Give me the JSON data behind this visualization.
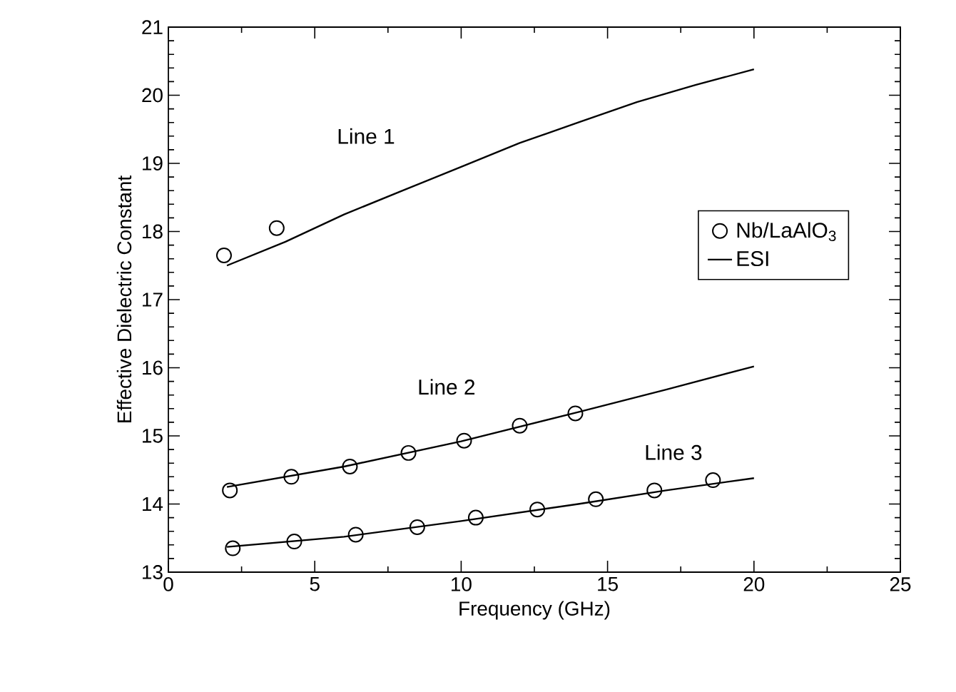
{
  "chart_data": {
    "type": "line",
    "xlabel": "Frequency (GHz)",
    "ylabel": "Effective  Dielectric  Constant",
    "xlim": [
      0,
      25
    ],
    "ylim": [
      13,
      21
    ],
    "xticks": [
      0,
      5,
      10,
      15,
      20,
      25
    ],
    "yticks": [
      13,
      14,
      15,
      16,
      17,
      18,
      19,
      20,
      21
    ],
    "grid": false,
    "legend": "right",
    "series": [
      {
        "name": "Nb/LaAlO$_{3}$",
        "type": "scatter",
        "marker": "circle",
        "color": "#000000",
        "x": [
          1.9,
          3.7,
          2.1,
          4.2,
          6.2,
          8.2,
          10.1,
          12.0,
          13.9,
          2.2,
          4.3,
          6.4,
          8.5,
          10.5,
          12.6,
          14.6,
          16.6,
          18.6
        ],
        "values": [
          17.65,
          18.05,
          14.2,
          14.4,
          14.55,
          14.75,
          14.93,
          15.15,
          15.33,
          13.35,
          13.45,
          13.55,
          13.66,
          13.8,
          13.92,
          14.07,
          14.2,
          14.35
        ]
      },
      {
        "name": "ESI",
        "color": "#000000",
        "x": [
          2,
          4,
          6,
          8,
          10,
          12,
          14,
          16,
          18,
          20
        ],
        "values": [
          17.5,
          17.85,
          18.25,
          18.6,
          18.95,
          19.3,
          19.6,
          19.9,
          20.15,
          20.38
        ]
      },
      {
        "color": "#000000",
        "x": [
          2,
          6,
          10,
          14,
          17,
          20
        ],
        "values": [
          14.25,
          14.55,
          14.92,
          15.35,
          15.68,
          16.02
        ]
      },
      {
        "color": "#000000",
        "x": [
          2,
          6,
          10,
          14,
          17,
          20
        ],
        "values": [
          13.37,
          13.52,
          13.75,
          14.0,
          14.2,
          14.38
        ]
      }
    ],
    "annotations": [
      "Line 1",
      "Line 2",
      "Line 3"
    ]
  }
}
